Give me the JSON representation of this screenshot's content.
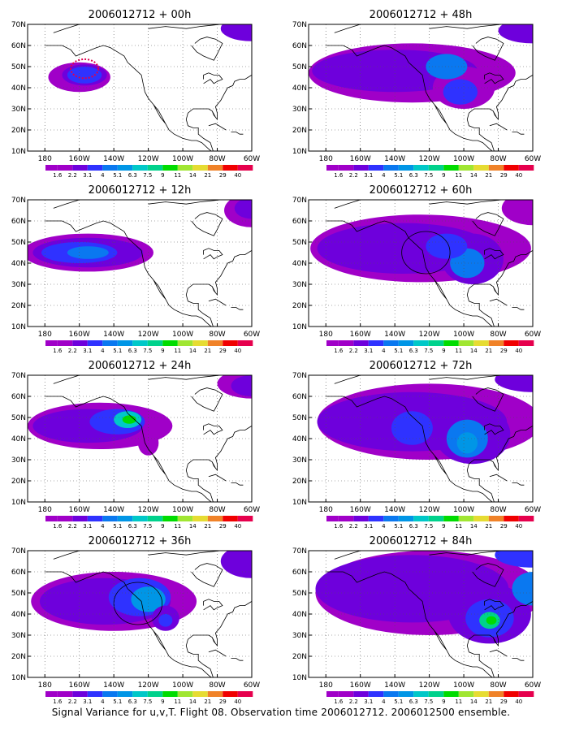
{
  "footer": "Signal Variance for u,v,T. Flight 08. Observation time 2006012712. 2006012500 ensemble.",
  "colorbar": {
    "labels": [
      "1.6",
      "2.2",
      "3.1",
      "4",
      "5.1",
      "6.3",
      "7.5",
      "9",
      "11",
      "14",
      "21",
      "29",
      "40"
    ],
    "colors": [
      "#a000c8",
      "#6e00dc",
      "#2f32ff",
      "#0a78f0",
      "#0096e6",
      "#00c8c8",
      "#00d28c",
      "#00dc00",
      "#a0e632",
      "#e6dc32",
      "#f08228",
      "#f00000",
      "#e6004d"
    ],
    "missing_color": "#ffffff"
  },
  "chart_data": [
    {
      "type": "heatmap",
      "title": "2006012712 + 00h",
      "lead_hours": 0,
      "xlabels": [
        "180",
        "160W",
        "140W",
        "120W",
        "100W",
        "80W",
        "60W"
      ],
      "ylabels": [
        "10N",
        "20N",
        "30N",
        "40N",
        "50N",
        "60N",
        "70N"
      ],
      "xlim": [
        "170E",
        "60W"
      ],
      "ylim": [
        10,
        70
      ],
      "grid": "dotted"
    },
    {
      "type": "heatmap",
      "title": "2006012712 + 48h",
      "lead_hours": 48,
      "xlabels": [
        "180",
        "160W",
        "140W",
        "120W",
        "100W",
        "80W",
        "60W"
      ],
      "ylabels": [
        "10N",
        "20N",
        "30N",
        "40N",
        "50N",
        "60N",
        "70N"
      ],
      "xlim": [
        "170E",
        "60W"
      ],
      "ylim": [
        10,
        70
      ],
      "grid": "dotted"
    },
    {
      "type": "heatmap",
      "title": "2006012712 + 12h",
      "lead_hours": 12,
      "xlabels": [
        "180",
        "160W",
        "140W",
        "120W",
        "100W",
        "80W",
        "60W"
      ],
      "ylabels": [
        "10N",
        "20N",
        "30N",
        "40N",
        "50N",
        "60N",
        "70N"
      ],
      "xlim": [
        "170E",
        "60W"
      ],
      "ylim": [
        10,
        70
      ],
      "grid": "dotted"
    },
    {
      "type": "heatmap",
      "title": "2006012712 + 60h",
      "lead_hours": 60,
      "xlabels": [
        "180",
        "160W",
        "140W",
        "120W",
        "100W",
        "80W",
        "60W"
      ],
      "ylabels": [
        "10N",
        "20N",
        "30N",
        "40N",
        "50N",
        "60N",
        "70N"
      ],
      "xlim": [
        "170E",
        "60W"
      ],
      "ylim": [
        10,
        70
      ],
      "grid": "dotted"
    },
    {
      "type": "heatmap",
      "title": "2006012712 + 24h",
      "lead_hours": 24,
      "xlabels": [
        "180",
        "160W",
        "140W",
        "120W",
        "100W",
        "80W",
        "60W"
      ],
      "ylabels": [
        "10N",
        "20N",
        "30N",
        "40N",
        "50N",
        "60N",
        "70N"
      ],
      "xlim": [
        "170E",
        "60W"
      ],
      "ylim": [
        10,
        70
      ],
      "grid": "dotted"
    },
    {
      "type": "heatmap",
      "title": "2006012712 + 72h",
      "lead_hours": 72,
      "xlabels": [
        "180",
        "160W",
        "140W",
        "120W",
        "100W",
        "80W",
        "60W"
      ],
      "ylabels": [
        "10N",
        "20N",
        "30N",
        "40N",
        "50N",
        "60N",
        "70N"
      ],
      "xlim": [
        "170E",
        "60W"
      ],
      "ylim": [
        10,
        70
      ],
      "grid": "dotted"
    },
    {
      "type": "heatmap",
      "title": "2006012712 + 36h",
      "lead_hours": 36,
      "xlabels": [
        "180",
        "160W",
        "140W",
        "120W",
        "100W",
        "80W",
        "60W"
      ],
      "ylabels": [
        "10N",
        "20N",
        "30N",
        "40N",
        "50N",
        "60N",
        "70N"
      ],
      "xlim": [
        "170E",
        "60W"
      ],
      "ylim": [
        10,
        70
      ],
      "grid": "dotted"
    },
    {
      "type": "heatmap",
      "title": "2006012712 + 84h",
      "lead_hours": 84,
      "xlabels": [
        "180",
        "160W",
        "140W",
        "120W",
        "100W",
        "80W",
        "60W"
      ],
      "ylabels": [
        "10N",
        "20N",
        "30N",
        "40N",
        "50N",
        "60N",
        "70N"
      ],
      "xlim": [
        "170E",
        "60W"
      ],
      "ylim": [
        10,
        70
      ],
      "grid": "dotted"
    }
  ]
}
